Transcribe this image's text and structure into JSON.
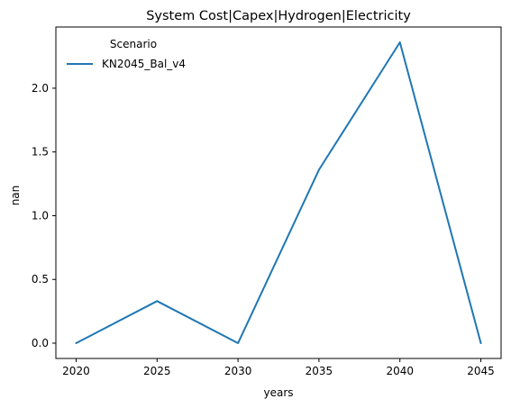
{
  "chart_data": {
    "type": "line",
    "title": "System Cost|Capex|Hydrogen|Electricity",
    "xlabel": "years",
    "ylabel": "nan",
    "x": [
      2020,
      2025,
      2030,
      2035,
      2040,
      2045
    ],
    "series": [
      {
        "name": "KN2045_Bal_v4",
        "values": [
          0.0,
          0.33,
          0.0,
          1.36,
          2.36,
          0.0
        ],
        "color": "#1f77b4"
      }
    ],
    "xticks": [
      "2020",
      "2025",
      "2030",
      "2035",
      "2040",
      "2045"
    ],
    "yticks": [
      "0.0",
      "0.5",
      "1.0",
      "1.5",
      "2.0"
    ],
    "xlim": [
      2018.75,
      2046.25
    ],
    "ylim": [
      -0.12,
      2.48
    ],
    "legend": {
      "title": "Scenario",
      "placement": "top-left"
    },
    "grid": false
  }
}
